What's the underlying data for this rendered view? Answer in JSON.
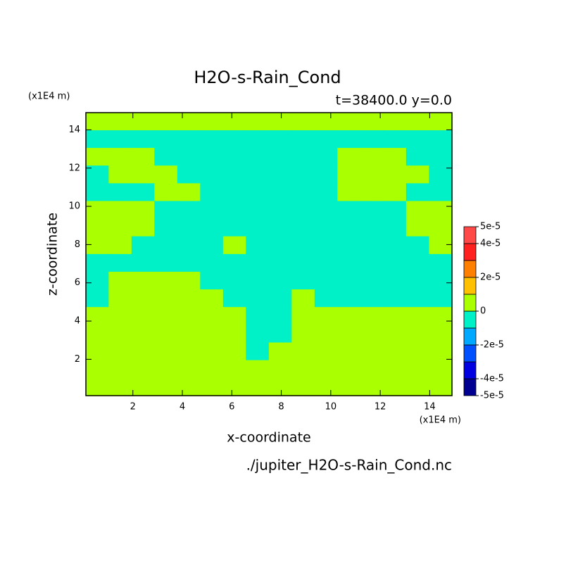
{
  "chart_data": {
    "type": "contour",
    "title": "H2O-s-Rain_Cond",
    "subtitle": "t=38400.0 y=0.0",
    "x_label": "x-coordinate",
    "y_label": "z-coordinate",
    "x_unit": "(x1E4 m)",
    "y_unit": "(x1E4 m)",
    "source": "./jupiter_H2O-s-Rain_Cond.nc",
    "xlim": [
      0.1,
      14.9
    ],
    "ylim": [
      0.1,
      14.9
    ],
    "xticks": [
      2,
      4,
      6,
      8,
      10,
      12,
      14
    ],
    "yticks": [
      2,
      4,
      6,
      8,
      10,
      12,
      14
    ],
    "levels": [
      -5e-05,
      -4e-05,
      -3e-05,
      -2e-05,
      -1e-05,
      0,
      1e-05,
      2e-05,
      3e-05,
      4e-05,
      5e-05
    ],
    "level_colors": [
      "#000090",
      "#0000e0",
      "#0050ff",
      "#00a8ff",
      "#00f0c8",
      "#aaff00",
      "#ffc000",
      "#ff8000",
      "#ff2020",
      "#ff4848"
    ],
    "colorbar_ticks": [
      {
        "value": 5e-05,
        "label": "5e-5"
      },
      {
        "value": 4e-05,
        "label": "4e-5"
      },
      {
        "value": 2e-05,
        "label": "2e-5"
      },
      0,
      {
        "value": -2e-05,
        "label": "-2e-5"
      },
      {
        "value": -4e-05,
        "label": "-4e-5"
      },
      {
        "value": -5e-05,
        "label": "-5e-5"
      }
    ],
    "field": [
      [
        5e-06,
        5e-06,
        5e-06,
        5e-06,
        5e-06,
        5e-06,
        5e-06,
        5e-06,
        5e-06,
        5e-06,
        5e-06,
        5e-06,
        5e-06,
        5e-06,
        5e-06,
        5e-06
      ],
      [
        -5e-06,
        -5e-06,
        -5e-06,
        -5e-06,
        -5e-06,
        -5e-06,
        -5e-06,
        -5e-06,
        -5e-06,
        -5e-06,
        -5e-06,
        -5e-06,
        -5e-06,
        -5e-06,
        -5e-06,
        -5e-06
      ],
      [
        5e-06,
        5e-06,
        5e-06,
        -5e-06,
        -5e-06,
        -5e-06,
        -5e-06,
        -5e-06,
        -5e-06,
        -5e-06,
        -5e-06,
        5e-06,
        5e-06,
        5e-06,
        -5e-06,
        -5e-06
      ],
      [
        -5e-06,
        5e-06,
        5e-06,
        5e-06,
        -5e-06,
        -5e-06,
        -5e-06,
        -5e-06,
        -5e-06,
        -5e-06,
        -5e-06,
        5e-06,
        5e-06,
        5e-06,
        5e-06,
        -5e-06
      ],
      [
        -5e-06,
        -5e-06,
        -5e-06,
        5e-06,
        5e-06,
        -5e-06,
        -5e-06,
        -5e-06,
        -5e-06,
        -5e-06,
        -5e-06,
        5e-06,
        5e-06,
        5e-06,
        -5e-06,
        -5e-06
      ],
      [
        5e-06,
        5e-06,
        5e-06,
        -5e-06,
        -5e-06,
        -5e-06,
        -5e-06,
        -5e-06,
        -5e-06,
        -5e-06,
        -5e-06,
        -5e-06,
        -5e-06,
        -5e-06,
        5e-06,
        5e-06
      ],
      [
        5e-06,
        5e-06,
        5e-06,
        -5e-06,
        -5e-06,
        -5e-06,
        -5e-06,
        -5e-06,
        -5e-06,
        -5e-06,
        -5e-06,
        -5e-06,
        -5e-06,
        -5e-06,
        5e-06,
        5e-06
      ],
      [
        5e-06,
        5e-06,
        -5e-06,
        -5e-06,
        -5e-06,
        -5e-06,
        5e-06,
        -5e-06,
        -5e-06,
        -5e-06,
        -5e-06,
        -5e-06,
        -5e-06,
        -5e-06,
        -5e-06,
        5e-06
      ],
      [
        -5e-06,
        -5e-06,
        -5e-06,
        -5e-06,
        -5e-06,
        -5e-06,
        -5e-06,
        -5e-06,
        -5e-06,
        -5e-06,
        -5e-06,
        -5e-06,
        -5e-06,
        -5e-06,
        -5e-06,
        -5e-06
      ],
      [
        -5e-06,
        5e-06,
        5e-06,
        5e-06,
        5e-06,
        -5e-06,
        -5e-06,
        -5e-06,
        -5e-06,
        -5e-06,
        -5e-06,
        -5e-06,
        -5e-06,
        -5e-06,
        -5e-06,
        -5e-06
      ],
      [
        -5e-06,
        5e-06,
        5e-06,
        5e-06,
        5e-06,
        5e-06,
        -5e-06,
        -5e-06,
        -5e-06,
        5e-06,
        -5e-06,
        -5e-06,
        -5e-06,
        -5e-06,
        -5e-06,
        -5e-06
      ],
      [
        5e-06,
        5e-06,
        5e-06,
        5e-06,
        5e-06,
        5e-06,
        5e-06,
        -5e-06,
        -5e-06,
        5e-06,
        5e-06,
        5e-06,
        5e-06,
        5e-06,
        5e-06,
        5e-06
      ],
      [
        5e-06,
        5e-06,
        5e-06,
        5e-06,
        5e-06,
        5e-06,
        5e-06,
        -5e-06,
        -5e-06,
        5e-06,
        5e-06,
        5e-06,
        5e-06,
        5e-06,
        5e-06,
        5e-06
      ],
      [
        5e-06,
        5e-06,
        5e-06,
        5e-06,
        5e-06,
        5e-06,
        5e-06,
        -5e-06,
        5e-06,
        5e-06,
        5e-06,
        5e-06,
        5e-06,
        5e-06,
        5e-06,
        5e-06
      ],
      [
        5e-06,
        5e-06,
        5e-06,
        5e-06,
        5e-06,
        5e-06,
        5e-06,
        5e-06,
        5e-06,
        5e-06,
        5e-06,
        5e-06,
        5e-06,
        5e-06,
        5e-06,
        5e-06
      ],
      [
        5e-06,
        5e-06,
        5e-06,
        5e-06,
        5e-06,
        5e-06,
        5e-06,
        5e-06,
        5e-06,
        5e-06,
        5e-06,
        5e-06,
        5e-06,
        5e-06,
        5e-06,
        5e-06
      ]
    ]
  }
}
